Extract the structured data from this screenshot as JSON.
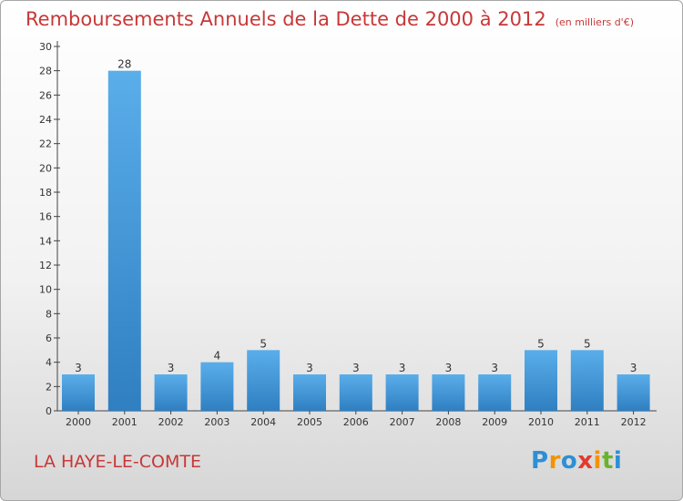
{
  "chart_data": {
    "type": "bar",
    "title": "Remboursements Annuels de la Dette de 2000 à 2012",
    "unit": "(en milliers d'€)",
    "categories": [
      "2000",
      "2001",
      "2002",
      "2003",
      "2004",
      "2005",
      "2006",
      "2007",
      "2008",
      "2009",
      "2010",
      "2011",
      "2012"
    ],
    "values": [
      3,
      28,
      3,
      4,
      5,
      3,
      3,
      3,
      3,
      3,
      5,
      5,
      3
    ],
    "ylim": [
      0,
      30
    ],
    "yticks": [
      0,
      2,
      4,
      6,
      8,
      10,
      12,
      14,
      16,
      18,
      20,
      22,
      24,
      26,
      28,
      30
    ],
    "grid": false,
    "legend": "none",
    "colors": {
      "bar_light": "#5aaeea",
      "bar_dark": "#2f7fc1",
      "title": "#c73838"
    }
  },
  "commune": "LA HAYE-LE-COMTE",
  "logo": {
    "text": "Proxiti",
    "letters": [
      {
        "ch": "P",
        "color": "#2d8fd6"
      },
      {
        "ch": "r",
        "color": "#f29400"
      },
      {
        "ch": "o",
        "color": "#2d8fd6"
      },
      {
        "ch": "x",
        "color": "#e23a2e"
      },
      {
        "ch": "i",
        "color": "#f29400"
      },
      {
        "ch": "t",
        "color": "#6ab42d"
      },
      {
        "ch": "i",
        "color": "#2d8fd6"
      }
    ]
  }
}
